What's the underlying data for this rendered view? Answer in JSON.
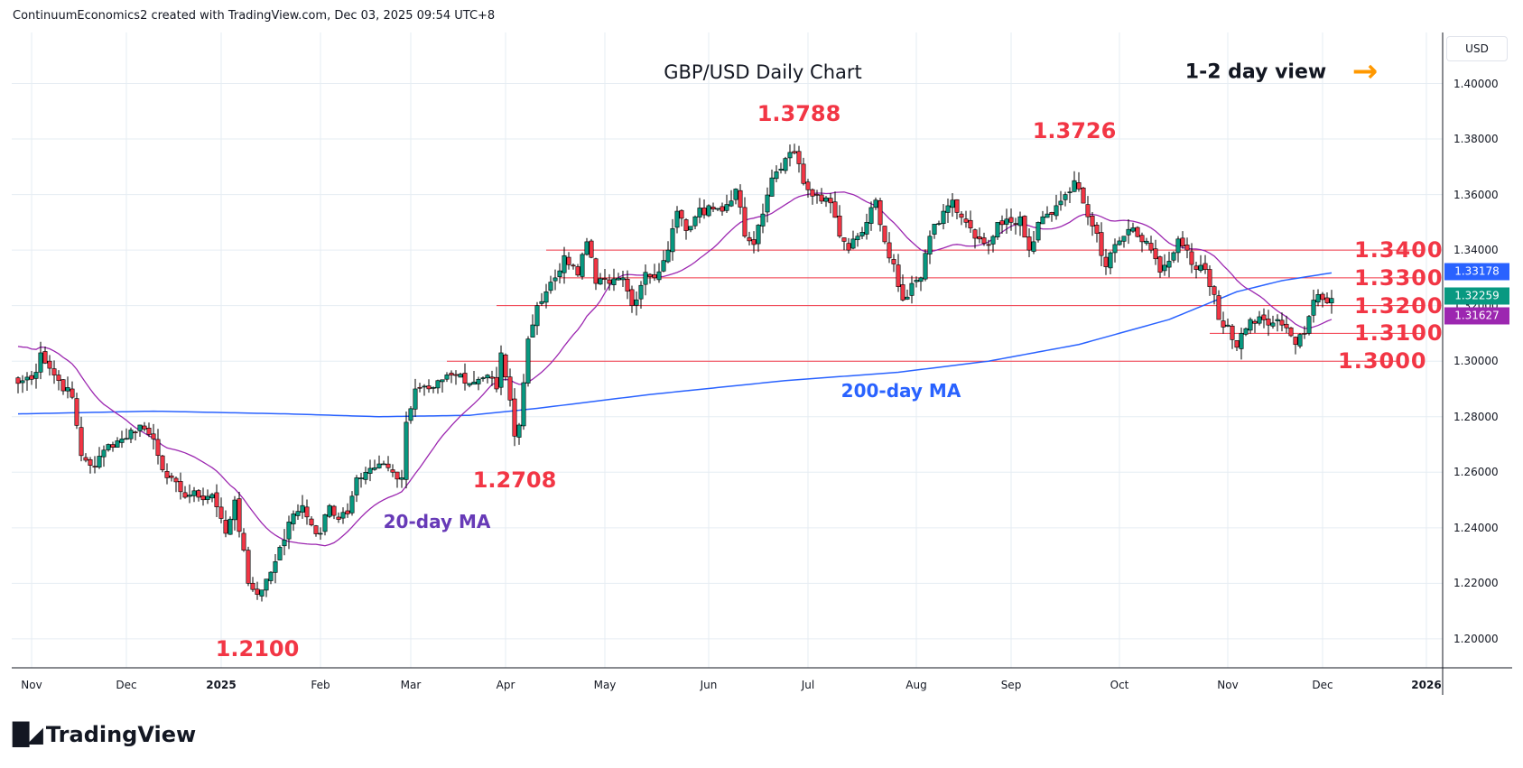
{
  "header": {
    "text": "ContinuumEconomics2 created with TradingView.com, Dec 03, 2025 09:54 UTC+8"
  },
  "brand": {
    "logo_text": "TradingView",
    "logo_mark": "TV"
  },
  "colors": {
    "up": "#089981",
    "down": "#f23645",
    "ma20": "#9c27b0",
    "ma200": "#2962ff",
    "level": "#f23645",
    "arrow": "#ff9800",
    "grid": "#e6edf3"
  },
  "chart_data": {
    "type": "candlestick",
    "title": "GBP/USD Daily Chart",
    "view_label": "1-2 day view",
    "view_icon": "arrow-right-icon",
    "currency": "USD",
    "ylim": [
      1.19,
      1.415
    ],
    "y_ticks": [
      "1.40000",
      "1.38000",
      "1.36000",
      "1.34000",
      "1.32000",
      "1.30000",
      "1.28000",
      "1.26000",
      "1.24000",
      "1.22000",
      "1.20000"
    ],
    "y_tick_values": [
      1.4,
      1.38,
      1.36,
      1.34,
      1.32,
      1.3,
      1.28,
      1.26,
      1.24,
      1.22,
      1.2
    ],
    "x_ticks": [
      {
        "label": "Nov",
        "bar": 3,
        "bold": false
      },
      {
        "label": "Dec",
        "bar": 24,
        "bold": false
      },
      {
        "label": "2025",
        "bar": 45,
        "bold": true
      },
      {
        "label": "Feb",
        "bar": 67,
        "bold": false
      },
      {
        "label": "Mar",
        "bar": 87,
        "bold": false
      },
      {
        "label": "Apr",
        "bar": 108,
        "bold": false
      },
      {
        "label": "May",
        "bar": 130,
        "bold": false
      },
      {
        "label": "Jun",
        "bar": 153,
        "bold": false
      },
      {
        "label": "Jul",
        "bar": 175,
        "bold": false
      },
      {
        "label": "Aug",
        "bar": 199,
        "bold": false
      },
      {
        "label": "Sep",
        "bar": 220,
        "bold": false
      },
      {
        "label": "Oct",
        "bar": 244,
        "bold": false
      },
      {
        "label": "Nov",
        "bar": 268,
        "bold": false
      },
      {
        "label": "Dec",
        "bar": 289,
        "bold": false
      },
      {
        "label": "2026",
        "bar": 312,
        "bold": true
      }
    ],
    "close_anchors": [
      [
        0,
        1.292
      ],
      [
        4,
        1.296
      ],
      [
        5,
        1.303
      ],
      [
        8,
        1.295
      ],
      [
        12,
        1.287
      ],
      [
        14,
        1.266
      ],
      [
        17,
        1.262
      ],
      [
        20,
        1.27
      ],
      [
        23,
        1.272
      ],
      [
        27,
        1.277
      ],
      [
        30,
        1.272
      ],
      [
        33,
        1.258
      ],
      [
        36,
        1.253
      ],
      [
        40,
        1.251
      ],
      [
        43,
        1.252
      ],
      [
        46,
        1.238
      ],
      [
        48,
        1.25
      ],
      [
        51,
        1.22
      ],
      [
        53,
        1.216
      ],
      [
        56,
        1.224
      ],
      [
        58,
        1.233
      ],
      [
        61,
        1.245
      ],
      [
        63,
        1.248
      ],
      [
        65,
        1.241
      ],
      [
        67,
        1.238
      ],
      [
        69,
        1.248
      ],
      [
        71,
        1.243
      ],
      [
        73,
        1.245
      ],
      [
        75,
        1.258
      ],
      [
        77,
        1.26
      ],
      [
        80,
        1.263
      ],
      [
        83,
        1.26
      ],
      [
        85,
        1.258
      ],
      [
        86,
        1.278
      ],
      [
        88,
        1.29
      ],
      [
        90,
        1.291
      ],
      [
        93,
        1.293
      ],
      [
        96,
        1.295
      ],
      [
        100,
        1.292
      ],
      [
        104,
        1.295
      ],
      [
        106,
        1.29
      ],
      [
        107,
        1.303
      ],
      [
        109,
        1.286
      ],
      [
        110,
        1.273
      ],
      [
        111,
        1.277
      ],
      [
        113,
        1.308
      ],
      [
        115,
        1.32
      ],
      [
        117,
        1.325
      ],
      [
        119,
        1.33
      ],
      [
        121,
        1.338
      ],
      [
        124,
        1.331
      ],
      [
        126,
        1.343
      ],
      [
        128,
        1.328
      ],
      [
        131,
        1.328
      ],
      [
        134,
        1.33
      ],
      [
        136,
        1.32
      ],
      [
        139,
        1.332
      ],
      [
        141,
        1.33
      ],
      [
        144,
        1.34
      ],
      [
        146,
        1.354
      ],
      [
        148,
        1.347
      ],
      [
        150,
        1.352
      ],
      [
        153,
        1.356
      ],
      [
        156,
        1.354
      ],
      [
        159,
        1.362
      ],
      [
        161,
        1.345
      ],
      [
        163,
        1.342
      ],
      [
        165,
        1.353
      ],
      [
        167,
        1.366
      ],
      [
        170,
        1.373
      ],
      [
        172,
        1.375
      ],
      [
        174,
        1.364
      ],
      [
        177,
        1.36
      ],
      [
        180,
        1.357
      ],
      [
        182,
        1.345
      ],
      [
        184,
        1.34
      ],
      [
        186,
        1.345
      ],
      [
        188,
        1.35
      ],
      [
        190,
        1.358
      ],
      [
        192,
        1.343
      ],
      [
        194,
        1.335
      ],
      [
        196,
        1.322
      ],
      [
        198,
        1.328
      ],
      [
        200,
        1.33
      ],
      [
        202,
        1.345
      ],
      [
        205,
        1.354
      ],
      [
        207,
        1.358
      ],
      [
        210,
        1.35
      ],
      [
        213,
        1.344
      ],
      [
        215,
        1.342
      ],
      [
        217,
        1.35
      ],
      [
        220,
        1.35
      ],
      [
        222,
        1.352
      ],
      [
        224,
        1.34
      ],
      [
        226,
        1.35
      ],
      [
        228,
        1.353
      ],
      [
        230,
        1.356
      ],
      [
        232,
        1.36
      ],
      [
        234,
        1.365
      ],
      [
        235,
        1.362
      ],
      [
        237,
        1.352
      ],
      [
        239,
        1.346
      ],
      [
        241,
        1.334
      ],
      [
        243,
        1.342
      ],
      [
        245,
        1.345
      ],
      [
        247,
        1.348
      ],
      [
        249,
        1.343
      ],
      [
        251,
        1.34
      ],
      [
        253,
        1.332
      ],
      [
        255,
        1.336
      ],
      [
        257,
        1.344
      ],
      [
        259,
        1.34
      ],
      [
        261,
        1.333
      ],
      [
        263,
        1.333
      ],
      [
        265,
        1.324
      ],
      [
        266,
        1.315
      ],
      [
        268,
        1.313
      ],
      [
        270,
        1.305
      ],
      [
        271,
        1.31
      ],
      [
        273,
        1.315
      ],
      [
        275,
        1.316
      ],
      [
        277,
        1.313
      ],
      [
        279,
        1.315
      ],
      [
        281,
        1.312
      ],
      [
        283,
        1.306
      ],
      [
        285,
        1.31
      ],
      [
        287,
        1.322
      ],
      [
        288,
        1.324
      ],
      [
        290,
        1.321
      ],
      [
        291,
        1.3226
      ]
    ],
    "ma200_anchors": [
      [
        0,
        1.281
      ],
      [
        30,
        1.282
      ],
      [
        60,
        1.281
      ],
      [
        80,
        1.28
      ],
      [
        100,
        1.2805
      ],
      [
        115,
        1.283
      ],
      [
        140,
        1.288
      ],
      [
        170,
        1.293
      ],
      [
        195,
        1.296
      ],
      [
        215,
        1.3
      ],
      [
        235,
        1.306
      ],
      [
        255,
        1.315
      ],
      [
        270,
        1.325
      ],
      [
        280,
        1.329
      ],
      [
        291,
        1.3318
      ]
    ],
    "levels": [
      {
        "label": "1.3400",
        "value": 1.34,
        "from_bar": 117
      },
      {
        "label": "1.3300",
        "value": 1.33,
        "from_bar": 120
      },
      {
        "label": "1.3200",
        "value": 1.32,
        "from_bar": 106
      },
      {
        "label": "1.3100",
        "value": 1.31,
        "from_bar": 264
      },
      {
        "label": "1.3000",
        "value": 1.3,
        "from_bar": 95
      }
    ],
    "annotations": [
      {
        "text": "1.3788",
        "bar": 173,
        "value": 1.3788,
        "type": "high"
      },
      {
        "text": "1.3726",
        "bar": 234,
        "value": 1.3726,
        "type": "high"
      },
      {
        "text": "1.2708",
        "bar": 110,
        "value": 1.2708,
        "type": "low"
      },
      {
        "text": "1.2100",
        "bar": 53,
        "value": 1.21,
        "type": "low"
      }
    ],
    "ma_labels": {
      "ma20": "20-day MA",
      "ma200": "200-day MA"
    },
    "last_values": {
      "ma200": "1.33178",
      "price": "1.32259",
      "ma20": "1.31627"
    }
  }
}
